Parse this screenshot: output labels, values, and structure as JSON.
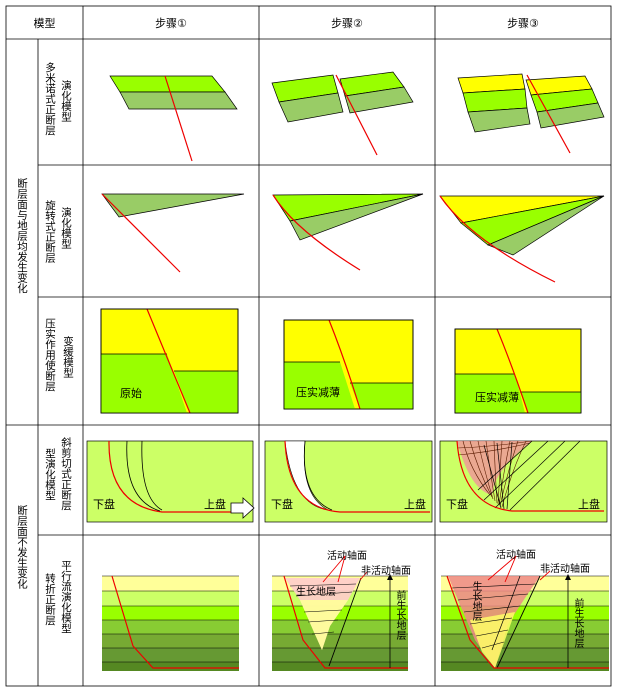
{
  "header": {
    "model": "模型",
    "step1": "步骤①",
    "step2": "步骤②",
    "step3": "步骤③"
  },
  "groups": {
    "g1": "断层面与地层均发生变化",
    "g2": "断层面不发生变化"
  },
  "rows": {
    "r1_a": "多米诺式正断层",
    "r1_b": "演化模型",
    "r2_a": "旋转式正断层",
    "r2_b": "演化模型",
    "r3_a": "压实作用使断层",
    "r3_b": "变缓模型",
    "r4_a": "斜剪切式正断层",
    "r4_b": "型演化模型",
    "r5_a": "转折正断层",
    "r5_b": "平行流演化模型"
  },
  "labels": {
    "original": "原始",
    "compacted1": "压实减薄",
    "compacted2": "压实减薄",
    "footwall": "下盘",
    "hangingwall": "上盘",
    "active_axis": "活动轴面",
    "inactive_axis": "非活动轴面",
    "growth_strata": "生长地层",
    "pre_growth": "前生长地层",
    "growth_strata_v": "生长地层"
  },
  "colors": {
    "green": "#99ff00",
    "olive": "#99cc66",
    "yellow": "#ffff00",
    "pale": "#ccff66",
    "fault": "#ee0000"
  }
}
